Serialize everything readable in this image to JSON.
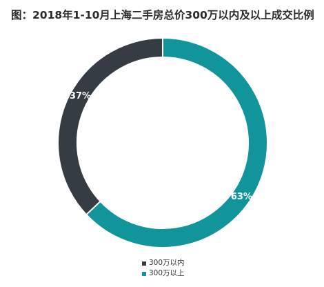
{
  "chart_data": {
    "type": "pie",
    "variant": "donut",
    "title": "图：2018年1-10月上海二手房总价300万以内及以上成交比例",
    "categories": [
      "300万以内",
      "300万以上"
    ],
    "values": [
      37,
      63
    ],
    "value_labels": [
      "37%",
      "63%"
    ],
    "colors": [
      "#353c44",
      "#11949a"
    ],
    "legend_position": "bottom"
  }
}
